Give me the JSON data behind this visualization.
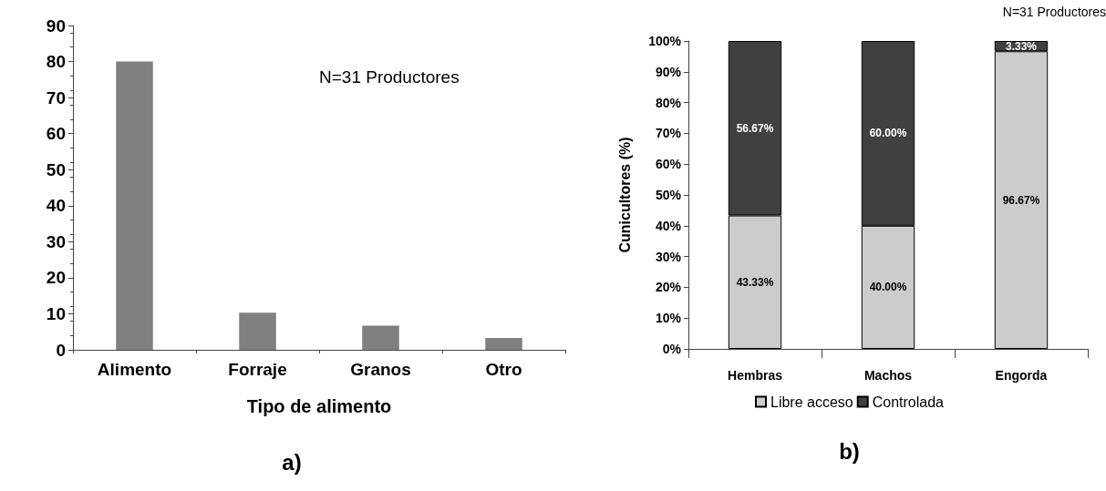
{
  "chart_data": [
    {
      "type": "bar",
      "title": "a)",
      "xlabel": "Tipo de alimento",
      "categories": [
        "Alimento",
        "Forraje",
        "Granos",
        "Otro"
      ],
      "values": [
        80,
        10.3,
        6.7,
        3.3
      ],
      "color": "#808080",
      "ylim": [
        0,
        90
      ],
      "yticks": [
        0,
        10,
        20,
        30,
        40,
        50,
        60,
        70,
        80,
        90
      ],
      "grid": false,
      "annotations": [
        "N=31 Productores"
      ]
    },
    {
      "type": "bar",
      "title": "b)",
      "ylabel": "Cunicultores (%)",
      "categories": [
        "Hembras",
        "Machos",
        "Engorda"
      ],
      "stacked": true,
      "legend": "bottom",
      "grid": false,
      "ylim": [
        0,
        100
      ],
      "yticks": [
        {
          "value": 0,
          "label": "0%"
        },
        {
          "value": 10,
          "label": "10%"
        },
        {
          "value": 20,
          "label": "20%"
        },
        {
          "value": 30,
          "label": "30%"
        },
        {
          "value": 40,
          "label": "40%"
        },
        {
          "value": 50,
          "label": "50%"
        },
        {
          "value": 60,
          "label": "60%"
        },
        {
          "value": 70,
          "label": "70%"
        },
        {
          "value": 80,
          "label": "80%"
        },
        {
          "value": 90,
          "label": "90%"
        },
        {
          "value": 100,
          "label": "100%"
        }
      ],
      "series": [
        {
          "name": "Libre acceso",
          "color": "#cccccc",
          "values": [
            43.33,
            40.0,
            96.67
          ],
          "value_labels": [
            "43.33%",
            "40.00%",
            "96.67%"
          ]
        },
        {
          "name": "Controlada",
          "color": "#404040",
          "values": [
            56.67,
            60.0,
            3.33
          ],
          "value_labels": [
            "56.67%",
            "60.00%",
            "3.33%"
          ]
        }
      ],
      "annotations": [
        "N=31 Productores"
      ]
    }
  ]
}
